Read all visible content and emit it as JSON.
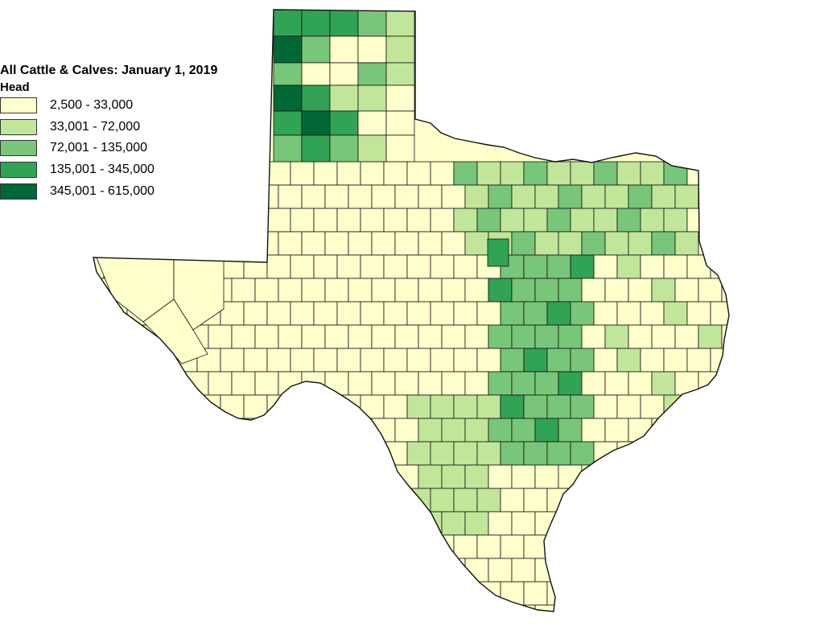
{
  "map": {
    "title": "All Cattle & Calves: January 1, 2019",
    "unit_label": "Head",
    "legend": [
      {
        "label": "2,500 - 33,000",
        "color": "#ffffcc"
      },
      {
        "label": "33,001 - 72,000",
        "color": "#c2e699"
      },
      {
        "label": "72,001 - 135,000",
        "color": "#78c679"
      },
      {
        "label": "135,001 - 345,000",
        "color": "#31a354"
      },
      {
        "label": "345,001 - 615,000",
        "color": "#006837"
      }
    ],
    "region": "Texas",
    "colors": {
      "border": "#111111",
      "water": "#ffffff"
    }
  }
}
